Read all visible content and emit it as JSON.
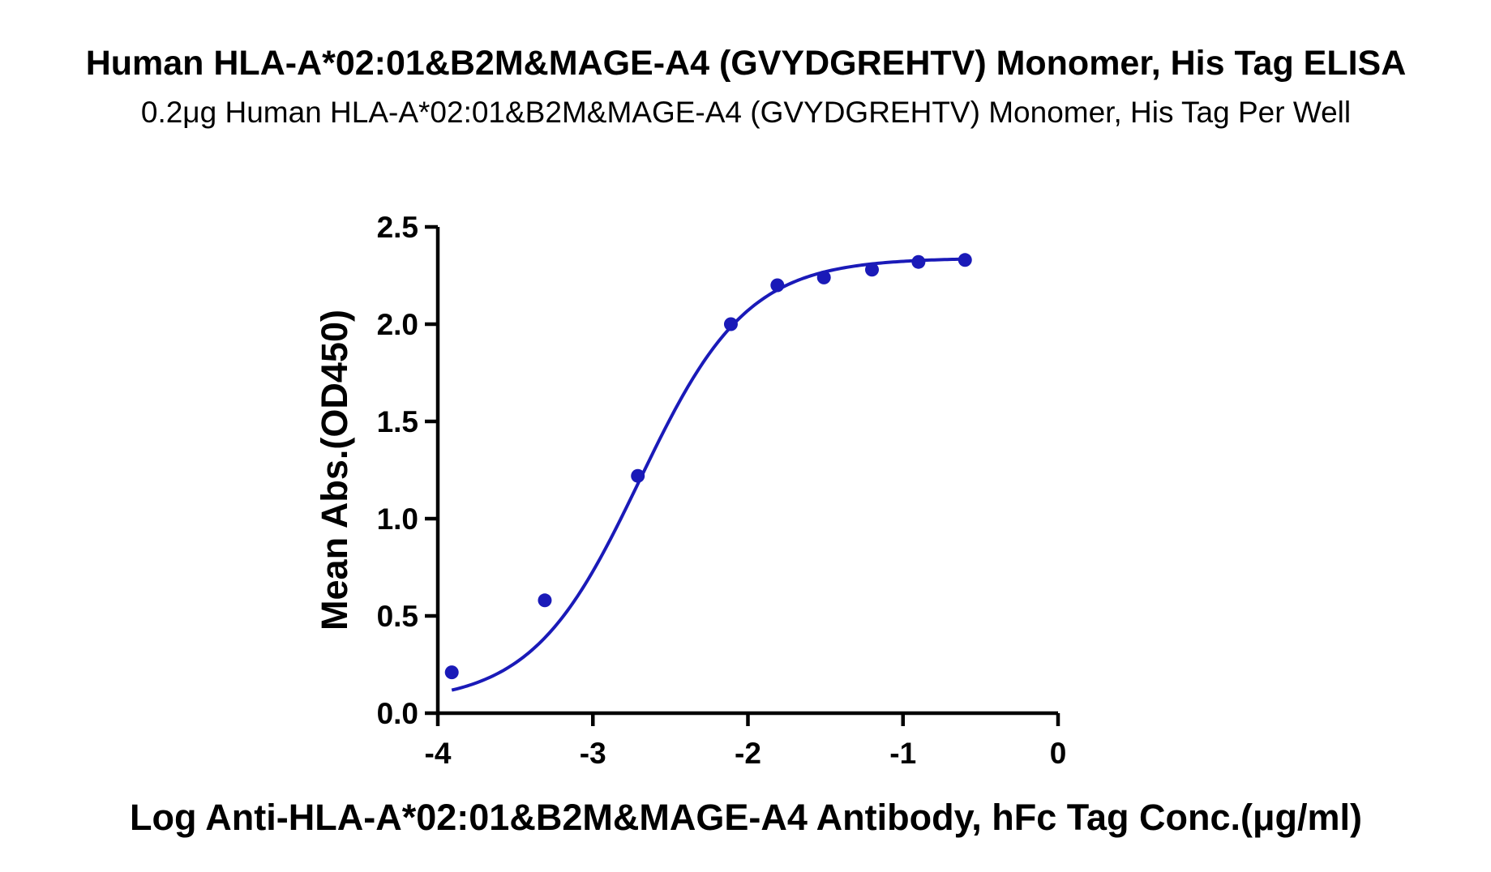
{
  "chart_data": {
    "type": "scatter",
    "title": "Human HLA-A*02:01&B2M&MAGE-A4 (GVYDGREHTV) Monomer, His Tag ELISA",
    "subtitle": "0.2μg Human HLA-A*02:01&B2M&MAGE-A4 (GVYDGREHTV) Monomer, His Tag Per Well",
    "xlabel": "Log Anti-HLA-A*02:01&B2M&MAGE-A4 Antibody, hFc Tag Conc.(μg/ml)",
    "ylabel": "Mean Abs.(OD450)",
    "xlim": [
      -4,
      0
    ],
    "ylim": [
      0,
      2.5
    ],
    "x_ticks": [
      "-4",
      "-3",
      "-2",
      "-1",
      "0"
    ],
    "y_ticks": [
      "0.0",
      "0.5",
      "1.0",
      "1.5",
      "2.0",
      "2.5"
    ],
    "grid": false,
    "series": [
      {
        "points": [
          {
            "x": -3.91,
            "y": 0.21
          },
          {
            "x": -3.31,
            "y": 0.58
          },
          {
            "x": -2.71,
            "y": 1.22
          },
          {
            "x": -2.11,
            "y": 2.0
          },
          {
            "x": -1.81,
            "y": 2.2
          },
          {
            "x": -1.51,
            "y": 2.24
          },
          {
            "x": -1.2,
            "y": 2.28
          },
          {
            "x": -0.9,
            "y": 2.32
          },
          {
            "x": -0.6,
            "y": 2.33
          }
        ],
        "fit": {
          "model": "4PL",
          "bottom": 0.05,
          "top": 2.34,
          "log_ec50": -2.7,
          "hill_slope": 1.25,
          "x_range": [
            -3.91,
            -0.6
          ]
        }
      }
    ],
    "colors": {
      "series": "#1a1ab8",
      "axis": "#000000",
      "text": "#000000"
    }
  }
}
